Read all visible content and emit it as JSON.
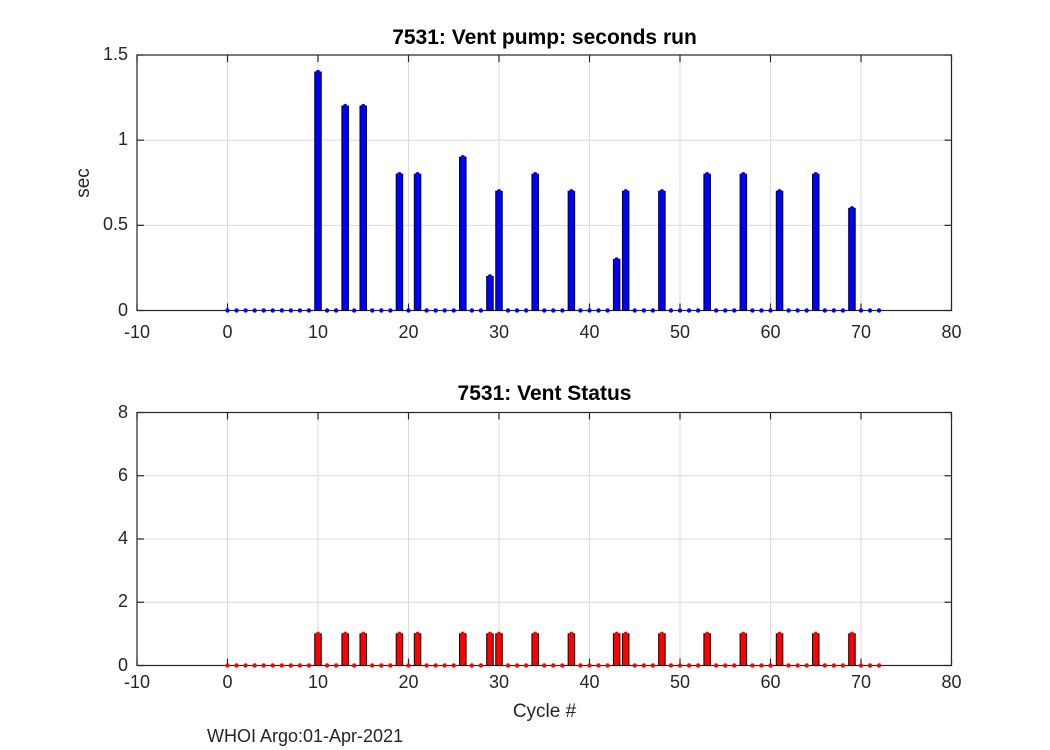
{
  "figure": {
    "footer": "WHOI Argo:01-Apr-2021",
    "background": "#ffffff"
  },
  "styles": {
    "axis_color": "#262626",
    "grid_color": "#dbdbdb",
    "tick_label_color": "#262626",
    "title_color": "#000000",
    "blue": "#0000ff",
    "red": "#ff0000",
    "bar_edge": "#000000"
  },
  "chart_data": [
    {
      "type": "bar",
      "title": "7531: Vent pump: seconds run",
      "xlabel": "",
      "ylabel": "sec",
      "xlim": [
        -10,
        80
      ],
      "ylim": [
        0,
        1.5
      ],
      "xticks": [
        -10,
        0,
        10,
        20,
        30,
        40,
        50,
        60,
        70,
        80
      ],
      "yticks": [
        0,
        0.5,
        1,
        1.5
      ],
      "grid": true,
      "legend_position": "none",
      "bar_color": "#0000ff",
      "marker": "dot",
      "marker_cycle_start": 0,
      "marker_cycle_end": 72,
      "categories": [
        10,
        13,
        15,
        19,
        21,
        26,
        29,
        30,
        34,
        38,
        43,
        44,
        48,
        53,
        57,
        61,
        65,
        69
      ],
      "values": [
        1.4,
        1.2,
        1.2,
        0.8,
        0.8,
        0.9,
        0.2,
        0.7,
        0.8,
        0.7,
        0.3,
        0.7,
        0.7,
        0.8,
        0.8,
        0.7,
        0.8,
        0.6
      ]
    },
    {
      "type": "bar",
      "title": "7531: Vent Status",
      "xlabel": "Cycle #",
      "ylabel": "",
      "xlim": [
        -10,
        80
      ],
      "ylim": [
        0,
        8
      ],
      "xticks": [
        -10,
        0,
        10,
        20,
        30,
        40,
        50,
        60,
        70,
        80
      ],
      "yticks": [
        0,
        2,
        4,
        6,
        8
      ],
      "grid": true,
      "legend_position": "none",
      "bar_color": "#ff0000",
      "marker": "dot",
      "marker_cycle_start": 0,
      "marker_cycle_end": 72,
      "categories": [
        10,
        13,
        15,
        19,
        21,
        26,
        29,
        30,
        34,
        38,
        43,
        44,
        48,
        53,
        57,
        61,
        65,
        69
      ],
      "values": [
        1,
        1,
        1,
        1,
        1,
        1,
        1,
        1,
        1,
        1,
        1,
        1,
        1,
        1,
        1,
        1,
        1,
        1
      ]
    }
  ]
}
